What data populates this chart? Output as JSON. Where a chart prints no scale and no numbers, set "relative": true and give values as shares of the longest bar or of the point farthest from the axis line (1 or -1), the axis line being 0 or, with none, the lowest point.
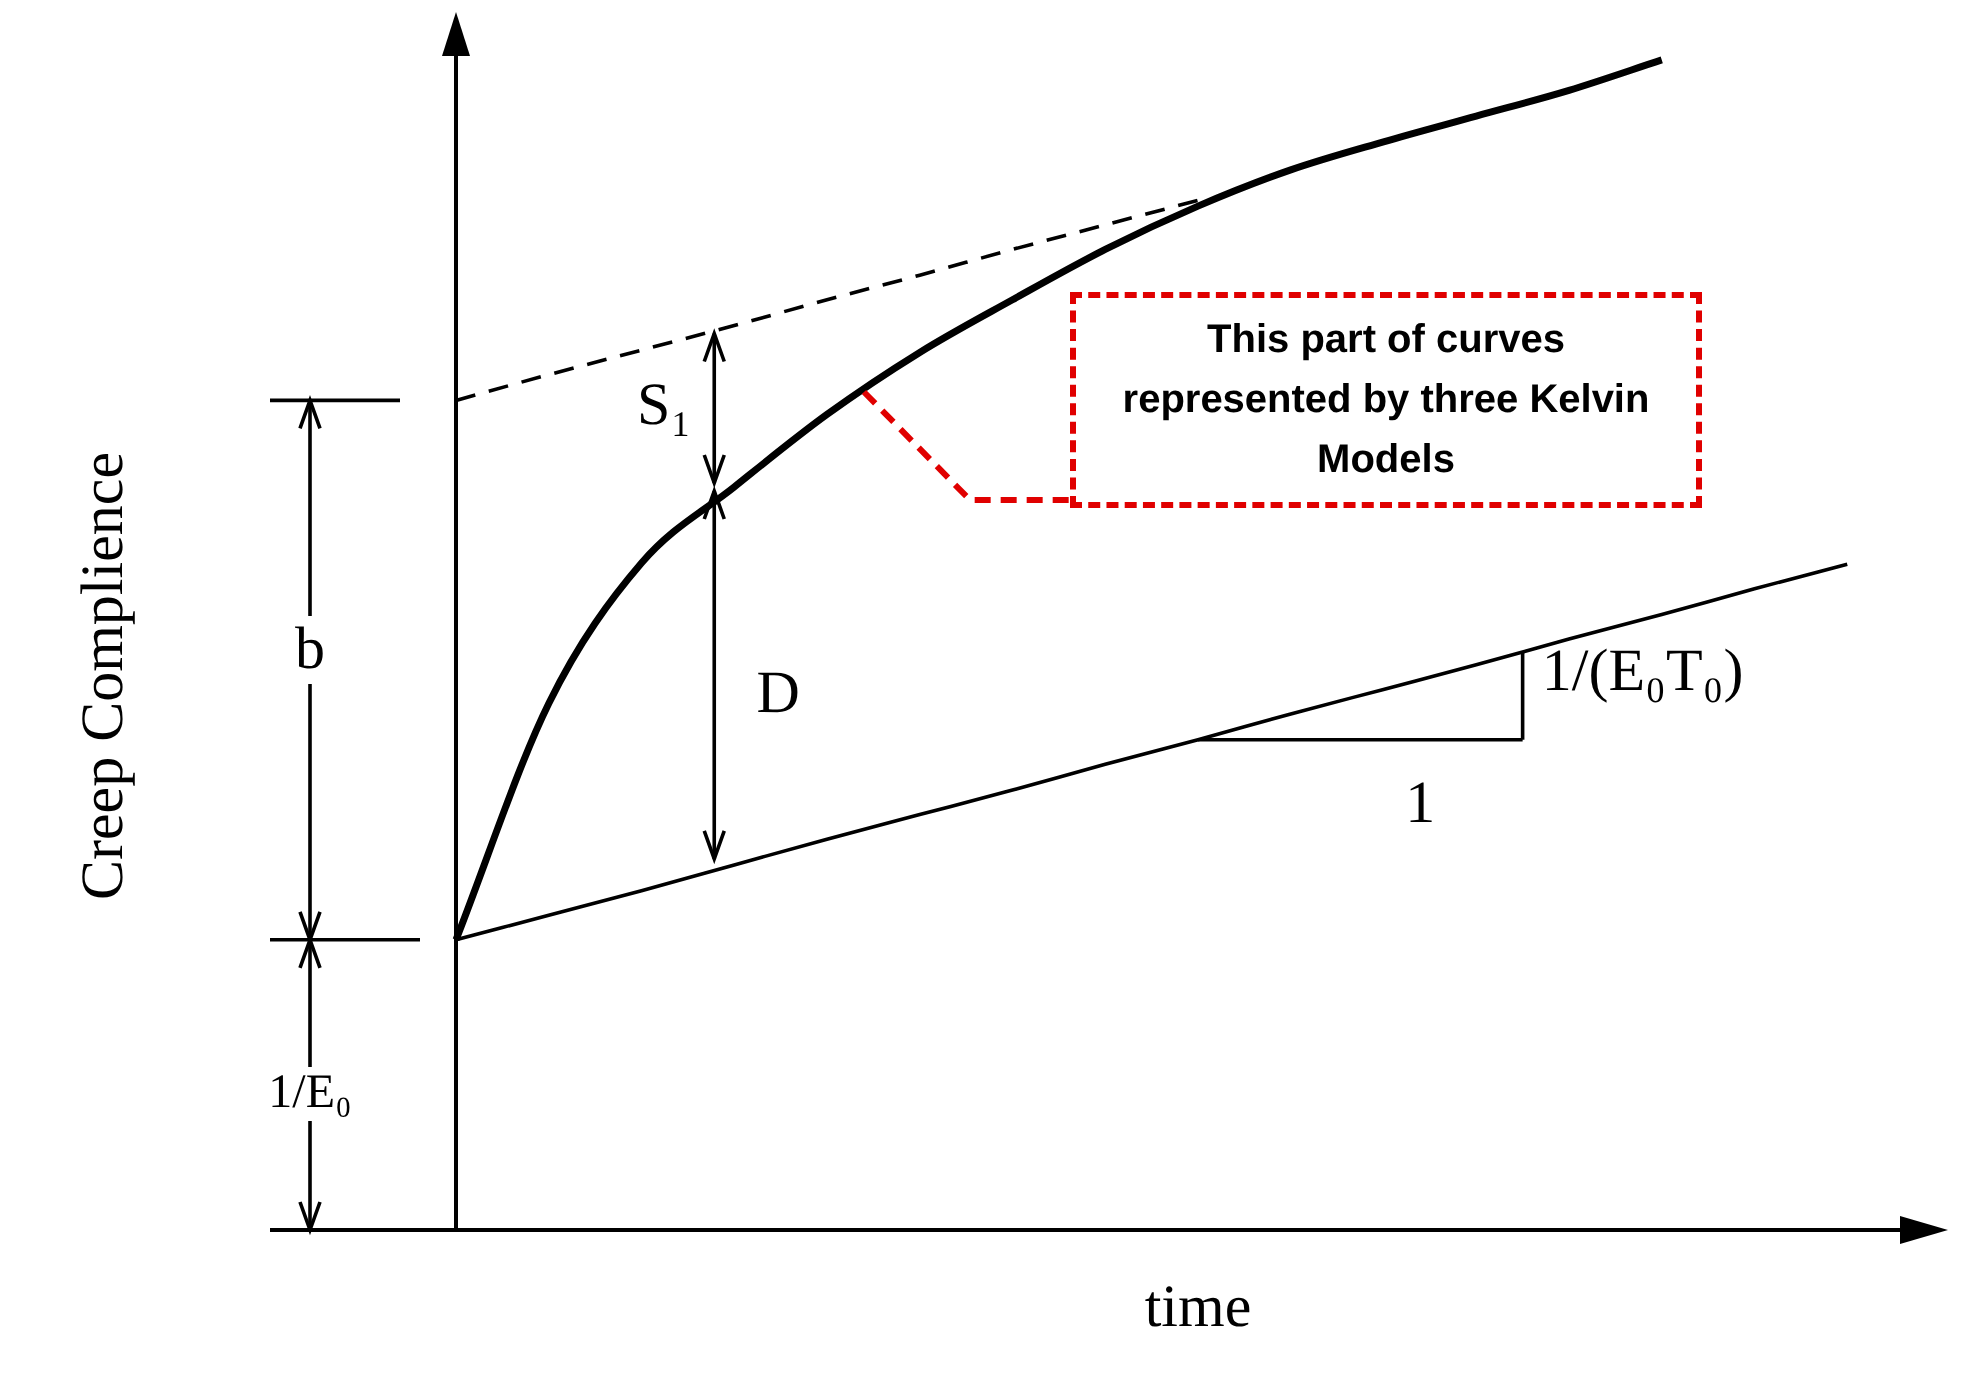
{
  "chart_data": {
    "type": "line",
    "xlabel": "time",
    "ylabel": "Creep Complience",
    "annotations": [
      "S₁",
      "D",
      "b",
      "1/E₀",
      "1",
      "1/(E₀T₀)",
      "This part of curves represented by three Kelvin Models"
    ],
    "categories": [
      null,
      null,
      null,
      null,
      null,
      null,
      null,
      null,
      null,
      null,
      null,
      null,
      null,
      null,
      null,
      null,
      null
    ],
    "relative": true,
    "series": [
      {
        "color": "#000000",
        "line_style": "solid",
        "values": [
          0.248,
          0.45,
          0.57,
          0.635,
          0.697,
          0.75,
          0.795,
          0.838,
          0.875,
          0.906,
          0.93,
          0.952,
          0.974,
          1,
          null,
          null,
          null
        ]
      },
      {
        "color": "#000000",
        "line_style": "dashed",
        "values": [
          0.709,
          0.731,
          0.752,
          0.773,
          0.795,
          0.816,
          0.838,
          0.859,
          0.88,
          null,
          null,
          null,
          null,
          null,
          null,
          null,
          null
        ]
      },
      {
        "color": "#000000",
        "line_style": "solid",
        "values": [
          0.248,
          0.269,
          0.29,
          0.312,
          0.334,
          0.355,
          0.376,
          0.398,
          0.419,
          0.441,
          0.462,
          0.483,
          0.505,
          0.526,
          0.548,
          0.569,
          null
        ]
      }
    ],
    "marker": "none",
    "legend": false,
    "tick_labels": false
  }
}
